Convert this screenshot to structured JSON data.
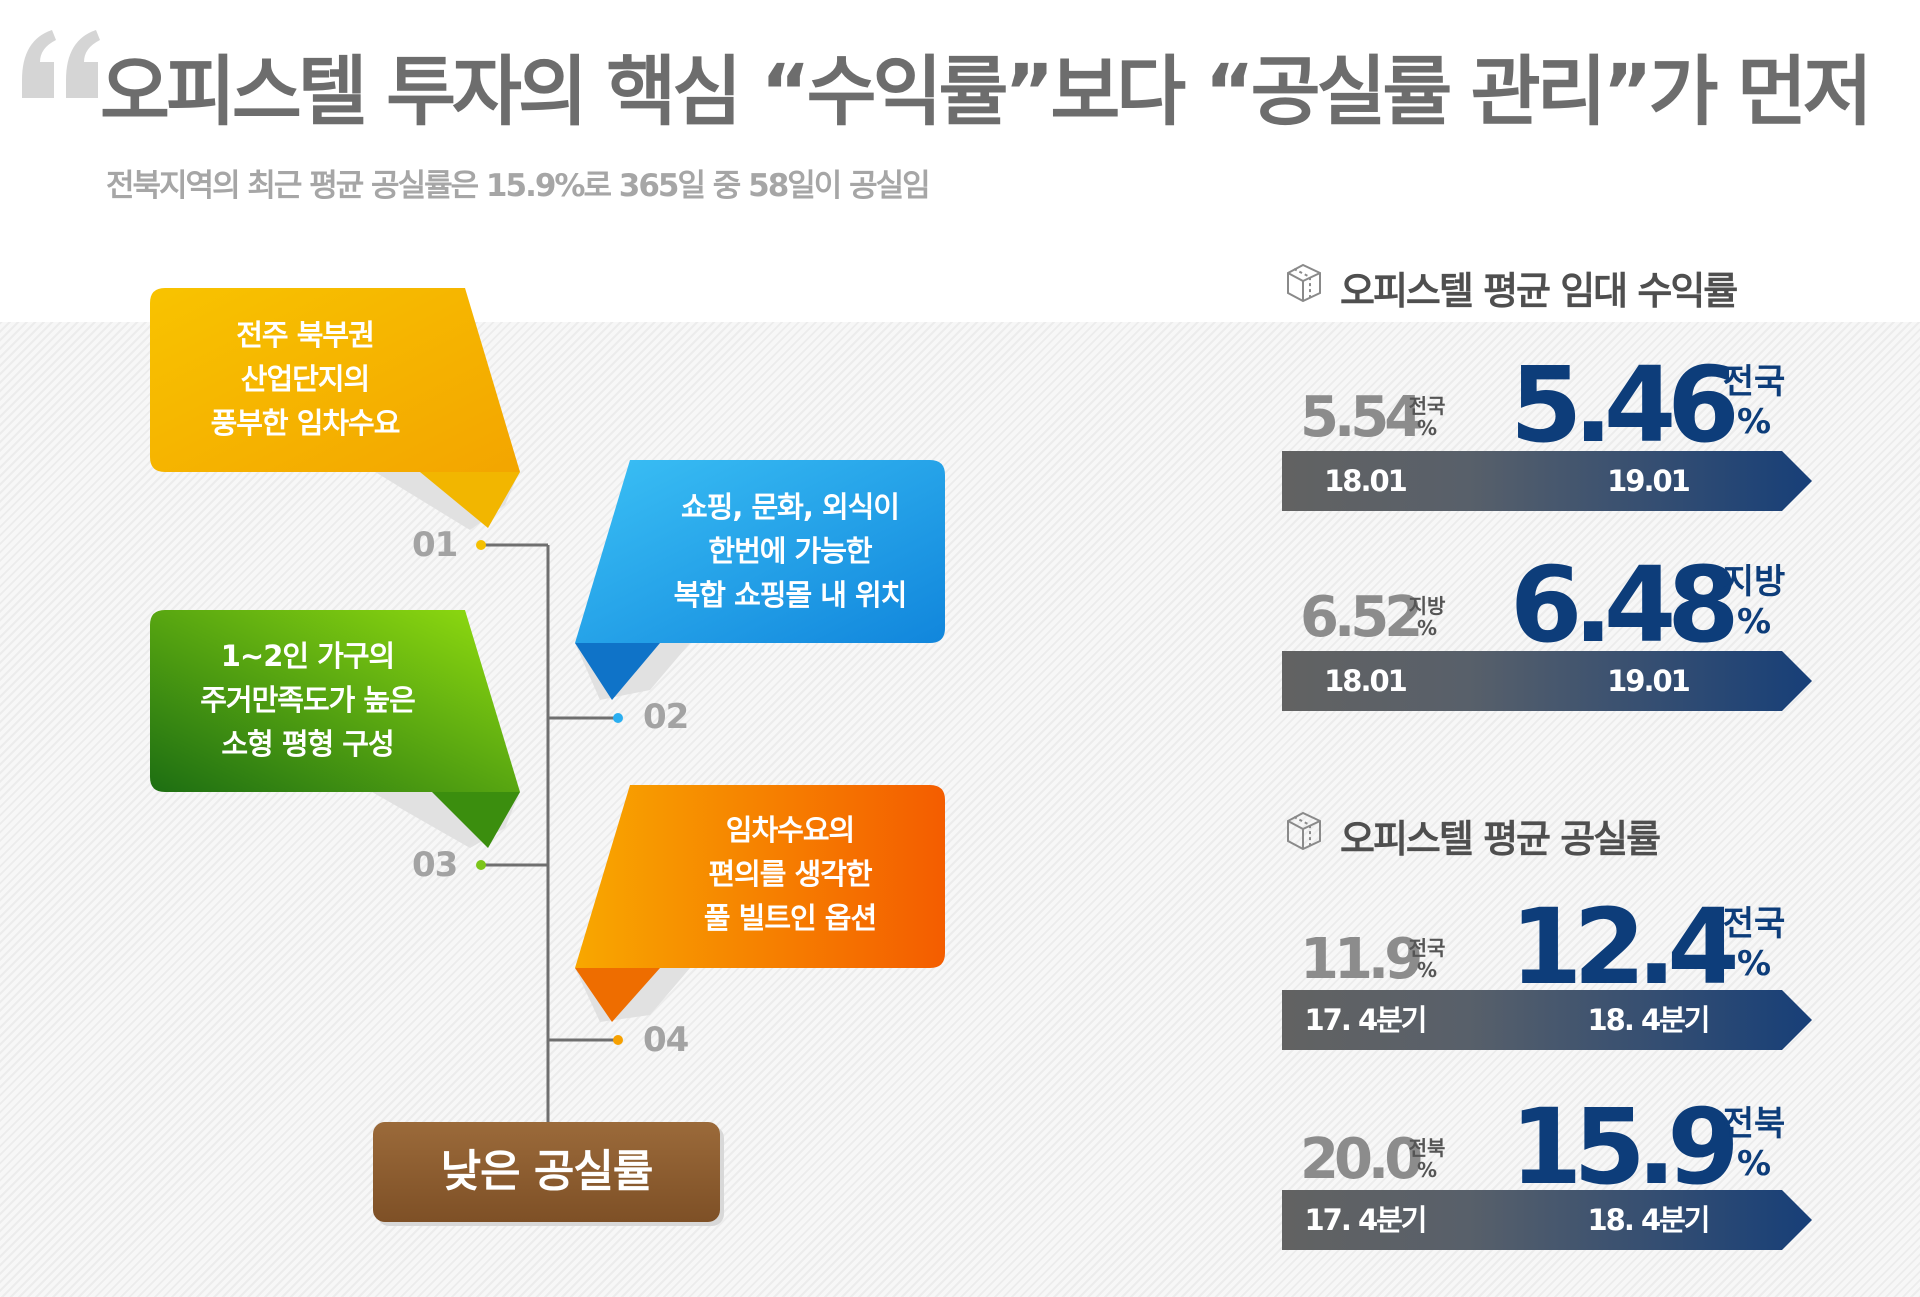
{
  "header": {
    "title": "오피스텔 투자의 핵심 “수익률”보다 “공실률 관리”가 먼저",
    "subtitle": "전북지역의 최근 평균 공실률은 15.9%로 365일 중 58일이 공실임"
  },
  "factors": [
    {
      "number": "01",
      "lines": [
        "전주 북부권",
        "산업단지의",
        "풍부한 임차수요"
      ],
      "color": "#f5b800"
    },
    {
      "number": "02",
      "lines": [
        "쇼핑, 문화, 외식이",
        "한번에 가능한",
        "복합 쇼핑몰 내 위치"
      ],
      "color": "#1ea0ea"
    },
    {
      "number": "03",
      "lines": [
        "1~2인 가구의",
        "주거만족도가 높은",
        "소형 평형 구성"
      ],
      "color": "#3f9d14"
    },
    {
      "number": "04",
      "lines": [
        "임차수요의",
        "편의를 생각한",
        "풀 빌트인 옵션"
      ],
      "color": "#f57c00"
    }
  ],
  "result_box": {
    "label": "낮은 공실률",
    "color": "#8b5a2b"
  },
  "sections": [
    {
      "title": "오피스텔 평균 임대 수익률",
      "icon": "cube-icon",
      "rows": [
        {
          "old_value": "5.54",
          "old_region": "전국",
          "old_unit": "%",
          "old_period": "18.01",
          "new_value": "5.46",
          "new_region": "전국",
          "new_unit": "%",
          "new_period": "19.01"
        },
        {
          "old_value": "6.52",
          "old_region": "지방",
          "old_unit": "%",
          "old_period": "18.01",
          "new_value": "6.48",
          "new_region": "지방",
          "new_unit": "%",
          "new_period": "19.01"
        }
      ]
    },
    {
      "title": "오피스텔 평균 공실률",
      "icon": "cube-icon",
      "rows": [
        {
          "old_value": "11.9",
          "old_region": "전국",
          "old_unit": "%",
          "old_period": "17. 4분기",
          "new_value": "12.4",
          "new_region": "전국",
          "new_unit": "%",
          "new_period": "18. 4분기"
        },
        {
          "old_value": "20.0",
          "old_region": "전북",
          "old_unit": "%",
          "old_period": "17. 4분기",
          "new_value": "15.9",
          "new_region": "전북",
          "new_unit": "%",
          "new_period": "18. 4분기"
        }
      ]
    }
  ],
  "colors": {
    "title_gray": "#6d6d6d",
    "value_blue": "#0d3d7a",
    "bar_gray": "#666666",
    "bar_blue": "#1c3f73"
  }
}
